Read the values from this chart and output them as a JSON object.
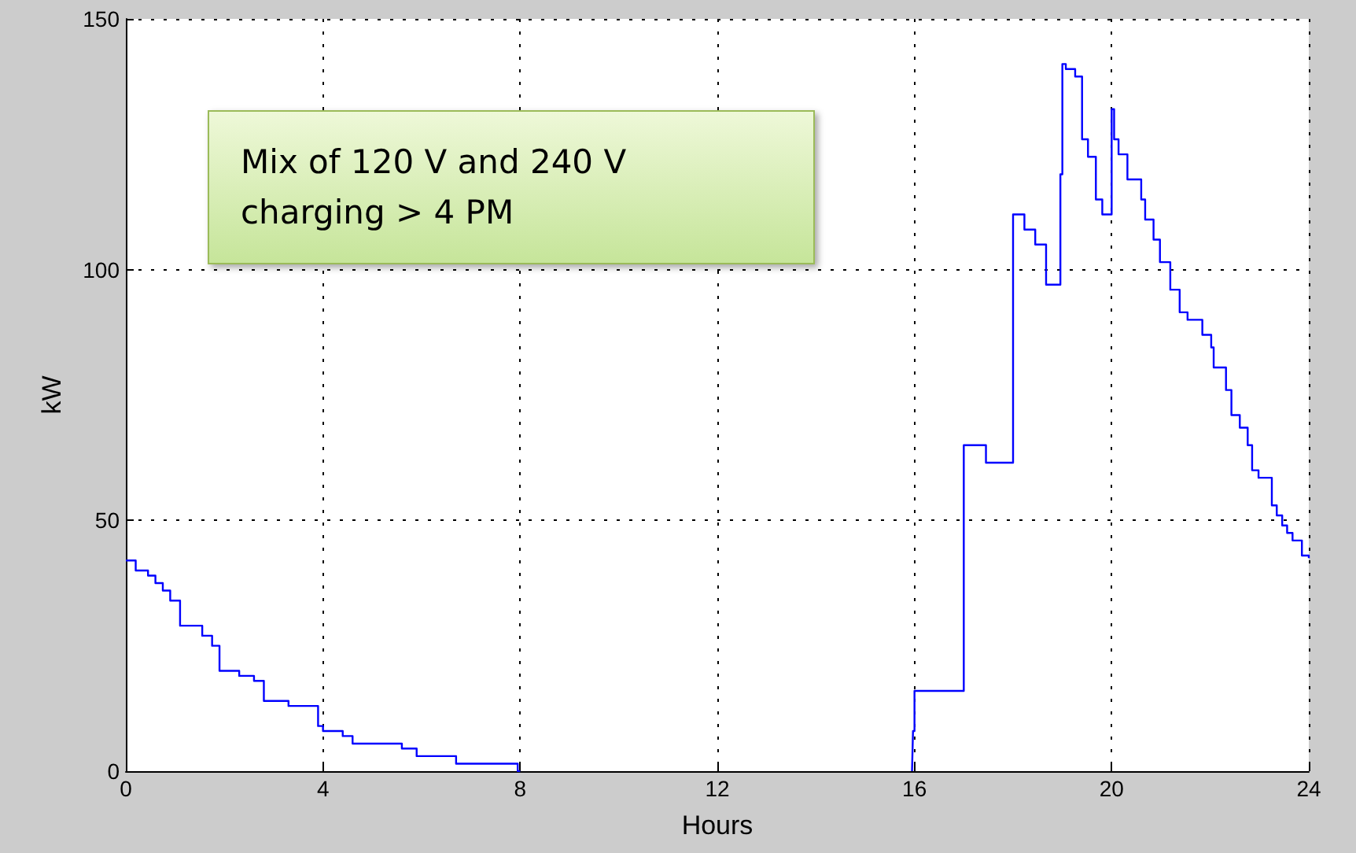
{
  "chart_data": {
    "type": "step",
    "xlabel": "Hours",
    "ylabel": "kW",
    "xlim": [
      0,
      24
    ],
    "xticks": [
      0,
      4,
      8,
      12,
      16,
      20,
      24
    ],
    "ylim": [
      0,
      150
    ],
    "yticks": [
      0,
      50,
      100,
      150
    ],
    "grid": true,
    "line_style": "solid",
    "marker": "none",
    "annotations": [
      "Mix of 120 V and 240 V\ncharging > 4 PM"
    ],
    "x": [
      0,
      0.2,
      0.45,
      0.6,
      0.75,
      0.9,
      1.1,
      1.55,
      1.75,
      1.9,
      2.3,
      2.6,
      2.8,
      3.3,
      3.9,
      4.0,
      4.4,
      4.6,
      5.6,
      5.9,
      6.7,
      7.95,
      8.0,
      15.95,
      15.97,
      16.0,
      17.0,
      17.45,
      18.0,
      18.23,
      18.45,
      18.67,
      18.96,
      19.0,
      19.07,
      19.26,
      19.4,
      19.52,
      19.68,
      19.81,
      20.0,
      20.05,
      20.14,
      20.32,
      20.6,
      20.68,
      20.85,
      20.98,
      21.19,
      21.38,
      21.54,
      21.84,
      22.02,
      22.07,
      22.32,
      22.43,
      22.6,
      22.76,
      22.85,
      22.98,
      23.25,
      23.35,
      23.46,
      23.56,
      23.67,
      23.86,
      24.0
    ],
    "series": [
      {
        "color": "#0000ff",
        "values": [
          42,
          40,
          39,
          37.5,
          36,
          34,
          29,
          27,
          25,
          20,
          19,
          18,
          14,
          13,
          9,
          8,
          7,
          5.5,
          4.5,
          3,
          1.5,
          0,
          null,
          0,
          8,
          16,
          65,
          61.5,
          111,
          108,
          105,
          97,
          119,
          141,
          140,
          138.5,
          126,
          122.5,
          114,
          111,
          132,
          126,
          123,
          118,
          114,
          110,
          106,
          101.5,
          96,
          91.5,
          90,
          87,
          84.5,
          80.5,
          76,
          71,
          68.5,
          65,
          60,
          58.5,
          53,
          51,
          49,
          47.5,
          46,
          43,
          42.5
        ]
      }
    ]
  }
}
